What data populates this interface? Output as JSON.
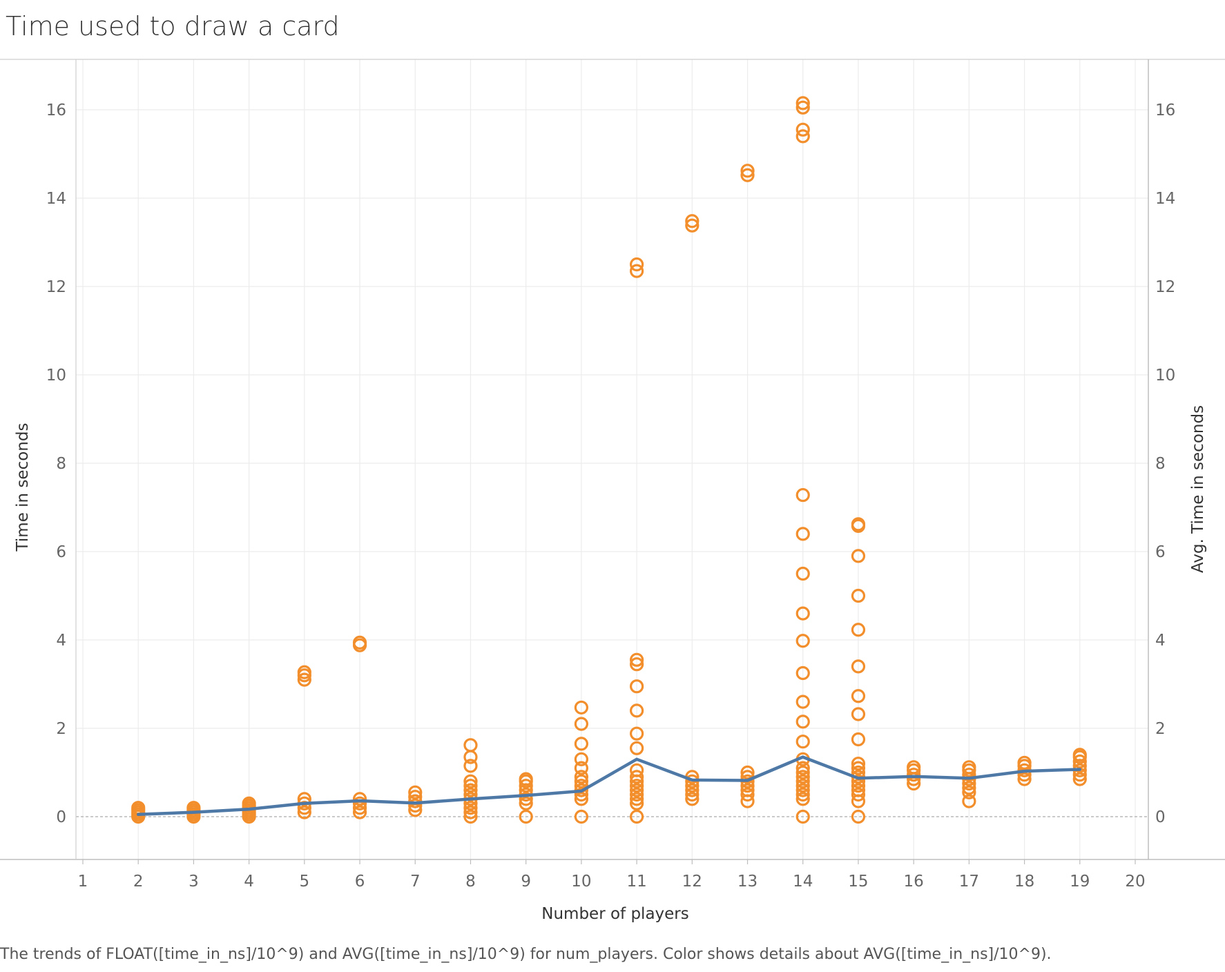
{
  "chart_data": {
    "type": "scatter",
    "title": "Time used to draw a card",
    "caption": "The trends of FLOAT([time_in_ns]/10^9) and AVG([time_in_ns]/10^9) for num_players.  Color shows details about AVG([time_in_ns]/10^9).",
    "xlabel": "Number of players",
    "ylabel_left": "Time in seconds",
    "ylabel_right": "Avg. Time in seconds",
    "xlim": [
      1,
      20
    ],
    "ylim": [
      -1,
      17
    ],
    "x_ticks": [
      "1",
      "2",
      "3",
      "4",
      "5",
      "6",
      "7",
      "8",
      "9",
      "10",
      "11",
      "12",
      "13",
      "14",
      "15",
      "16",
      "17",
      "18",
      "19",
      "20"
    ],
    "y_ticks": [
      "0",
      "2",
      "4",
      "6",
      "8",
      "10",
      "12",
      "14",
      "16"
    ],
    "grid": true,
    "colors": {
      "points": "#F28E2B",
      "line": "#4E79A7",
      "grid": "#ececec",
      "zero_line": "#aaaaaa"
    },
    "series": [
      {
        "type": "scatter",
        "points": [
          [
            2,
            0.0
          ],
          [
            2,
            0.05
          ],
          [
            2,
            0.1
          ],
          [
            2,
            0.15
          ],
          [
            2,
            0.2
          ],
          [
            3,
            0.0
          ],
          [
            3,
            0.05
          ],
          [
            3,
            0.1
          ],
          [
            3,
            0.15
          ],
          [
            3,
            0.2
          ],
          [
            4,
            0.0
          ],
          [
            4,
            0.05
          ],
          [
            4,
            0.1
          ],
          [
            4,
            0.15
          ],
          [
            4,
            0.2
          ],
          [
            4,
            0.25
          ],
          [
            4,
            0.3
          ],
          [
            5,
            0.1
          ],
          [
            5,
            0.2
          ],
          [
            5,
            0.3
          ],
          [
            5,
            0.4
          ],
          [
            5,
            3.1
          ],
          [
            5,
            3.2
          ],
          [
            5,
            3.27
          ],
          [
            6,
            0.1
          ],
          [
            6,
            0.2
          ],
          [
            6,
            0.3
          ],
          [
            6,
            0.4
          ],
          [
            6,
            3.88
          ],
          [
            6,
            3.94
          ],
          [
            7,
            0.15
          ],
          [
            7,
            0.25
          ],
          [
            7,
            0.35
          ],
          [
            7,
            0.45
          ],
          [
            7,
            0.55
          ],
          [
            8,
            0.0
          ],
          [
            8,
            0.1
          ],
          [
            8,
            0.2
          ],
          [
            8,
            0.3
          ],
          [
            8,
            0.4
          ],
          [
            8,
            0.5
          ],
          [
            8,
            0.6
          ],
          [
            8,
            0.7
          ],
          [
            8,
            0.8
          ],
          [
            8,
            1.15
          ],
          [
            8,
            1.35
          ],
          [
            8,
            1.62
          ],
          [
            9,
            0.0
          ],
          [
            9,
            0.3
          ],
          [
            9,
            0.4
          ],
          [
            9,
            0.5
          ],
          [
            9,
            0.6
          ],
          [
            9,
            0.7
          ],
          [
            9,
            0.8
          ],
          [
            9,
            0.85
          ],
          [
            10,
            0.0
          ],
          [
            10,
            0.4
          ],
          [
            10,
            0.5
          ],
          [
            10,
            0.6
          ],
          [
            10,
            0.7
          ],
          [
            10,
            0.8
          ],
          [
            10,
            0.9
          ],
          [
            10,
            1.1
          ],
          [
            10,
            1.3
          ],
          [
            10,
            1.65
          ],
          [
            10,
            2.1
          ],
          [
            10,
            2.47
          ],
          [
            11,
            0.0
          ],
          [
            11,
            0.3
          ],
          [
            11,
            0.4
          ],
          [
            11,
            0.5
          ],
          [
            11,
            0.6
          ],
          [
            11,
            0.7
          ],
          [
            11,
            0.8
          ],
          [
            11,
            0.9
          ],
          [
            11,
            1.05
          ],
          [
            11,
            1.55
          ],
          [
            11,
            1.88
          ],
          [
            11,
            2.4
          ],
          [
            11,
            2.95
          ],
          [
            11,
            3.45
          ],
          [
            11,
            3.55
          ],
          [
            11,
            12.35
          ],
          [
            11,
            12.5
          ],
          [
            12,
            0.4
          ],
          [
            12,
            0.5
          ],
          [
            12,
            0.6
          ],
          [
            12,
            0.7
          ],
          [
            12,
            0.8
          ],
          [
            12,
            0.9
          ],
          [
            12,
            13.38
          ],
          [
            12,
            13.48
          ],
          [
            13,
            0.35
          ],
          [
            13,
            0.5
          ],
          [
            13,
            0.6
          ],
          [
            13,
            0.7
          ],
          [
            13,
            0.8
          ],
          [
            13,
            0.9
          ],
          [
            13,
            1.0
          ],
          [
            13,
            14.52
          ],
          [
            13,
            14.62
          ],
          [
            14,
            0.0
          ],
          [
            14,
            0.4
          ],
          [
            14,
            0.5
          ],
          [
            14,
            0.6
          ],
          [
            14,
            0.7
          ],
          [
            14,
            0.8
          ],
          [
            14,
            0.9
          ],
          [
            14,
            1.0
          ],
          [
            14,
            1.1
          ],
          [
            14,
            1.3
          ],
          [
            14,
            1.7
          ],
          [
            14,
            2.15
          ],
          [
            14,
            2.6
          ],
          [
            14,
            3.25
          ],
          [
            14,
            3.98
          ],
          [
            14,
            4.6
          ],
          [
            14,
            5.5
          ],
          [
            14,
            6.4
          ],
          [
            14,
            7.28
          ],
          [
            14,
            15.4
          ],
          [
            14,
            15.55
          ],
          [
            14,
            16.05
          ],
          [
            14,
            16.15
          ],
          [
            15,
            0.0
          ],
          [
            15,
            0.35
          ],
          [
            15,
            0.5
          ],
          [
            15,
            0.6
          ],
          [
            15,
            0.7
          ],
          [
            15,
            0.8
          ],
          [
            15,
            0.9
          ],
          [
            15,
            1.0
          ],
          [
            15,
            1.1
          ],
          [
            15,
            1.2
          ],
          [
            15,
            1.75
          ],
          [
            15,
            2.32
          ],
          [
            15,
            2.73
          ],
          [
            15,
            3.4
          ],
          [
            15,
            4.23
          ],
          [
            15,
            5.0
          ],
          [
            15,
            5.9
          ],
          [
            15,
            6.58
          ],
          [
            15,
            6.62
          ],
          [
            16,
            0.75
          ],
          [
            16,
            0.85
          ],
          [
            16,
            0.95
          ],
          [
            16,
            1.05
          ],
          [
            16,
            1.12
          ],
          [
            17,
            0.35
          ],
          [
            17,
            0.55
          ],
          [
            17,
            0.65
          ],
          [
            17,
            0.75
          ],
          [
            17,
            0.85
          ],
          [
            17,
            0.95
          ],
          [
            17,
            1.05
          ],
          [
            17,
            1.12
          ],
          [
            18,
            0.85
          ],
          [
            18,
            0.95
          ],
          [
            18,
            1.05
          ],
          [
            18,
            1.15
          ],
          [
            18,
            1.22
          ],
          [
            19,
            0.85
          ],
          [
            19,
            0.95
          ],
          [
            19,
            1.05
          ],
          [
            19,
            1.15
          ],
          [
            19,
            1.25
          ],
          [
            19,
            1.35
          ],
          [
            19,
            1.4
          ]
        ]
      },
      {
        "type": "line",
        "x": [
          2,
          3,
          4,
          5,
          6,
          7,
          8,
          9,
          10,
          11,
          12,
          13,
          14,
          15,
          16,
          17,
          18,
          19
        ],
        "values": [
          0.05,
          0.1,
          0.17,
          0.3,
          0.36,
          0.31,
          0.4,
          0.48,
          0.58,
          1.3,
          0.83,
          0.82,
          1.35,
          0.87,
          0.91,
          0.87,
          1.03,
          1.07
        ]
      }
    ]
  }
}
